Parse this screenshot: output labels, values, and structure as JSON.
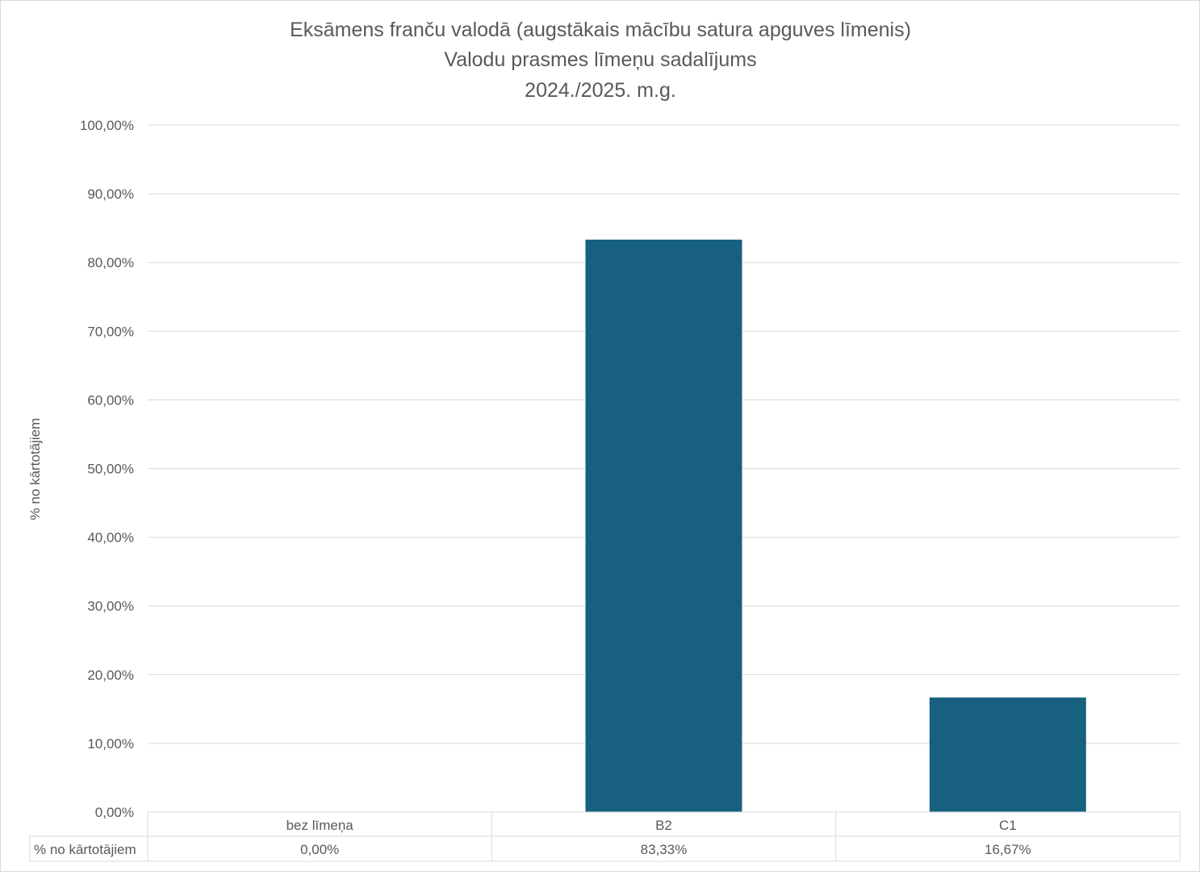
{
  "chart_data": {
    "type": "bar",
    "title": [
      "Eksāmens franču valodā (augstākais mācību satura apguves līmenis)",
      "Valodu prasmes līmeņu sadalījums",
      "2024./2025. m.g."
    ],
    "ylabel": "% no kārtotājiem",
    "categories": [
      "bez līmeņa",
      "B2",
      "C1"
    ],
    "series": [
      {
        "name": "% no kārtotājiem",
        "values": [
          0.0,
          83.33,
          16.67
        ],
        "color": "#17607f"
      }
    ],
    "ylim": [
      0,
      100
    ],
    "yticks": [
      0,
      10,
      20,
      30,
      40,
      50,
      60,
      70,
      80,
      90,
      100
    ],
    "ytick_labels": [
      "0,00%",
      "10,00%",
      "20,00%",
      "30,00%",
      "40,00%",
      "50,00%",
      "60,00%",
      "70,00%",
      "80,00%",
      "90,00%",
      "100,00%"
    ],
    "data_table": {
      "row_label": "% no kārtotājiem",
      "cells": [
        "0,00%",
        "83,33%",
        "16,67%"
      ]
    },
    "grid": true,
    "colors": {
      "bar": "#17607f",
      "grid": "#d9d9d9",
      "text": "#595959"
    }
  }
}
